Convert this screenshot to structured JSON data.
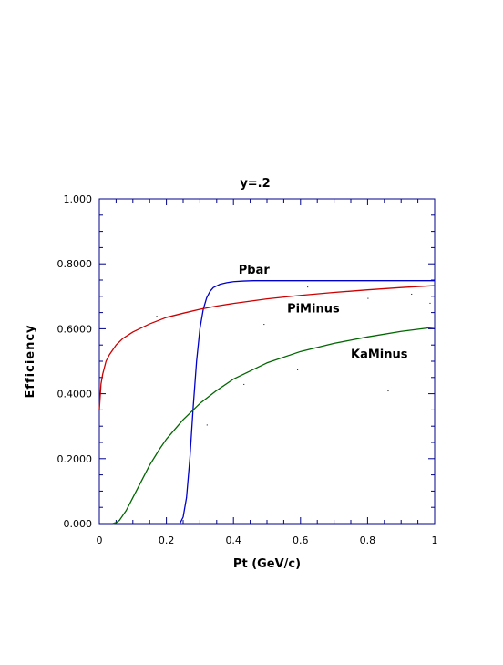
{
  "chart_data": {
    "type": "line",
    "title": "y=.2",
    "xlabel": "Pt (GeV/c)",
    "ylabel": "Efficiency",
    "xlim": [
      0,
      1
    ],
    "ylim": [
      0,
      1
    ],
    "xticks": [
      {
        "value": 0,
        "label": "0"
      },
      {
        "value": 0.2,
        "label": "0.2"
      },
      {
        "value": 0.4,
        "label": "0.4"
      },
      {
        "value": 0.6,
        "label": "0.6"
      },
      {
        "value": 0.8,
        "label": "0.8"
      },
      {
        "value": 1,
        "label": "1"
      }
    ],
    "yticks": [
      {
        "value": 0,
        "label": "0.000"
      },
      {
        "value": 0.2,
        "label": "0.2000"
      },
      {
        "value": 0.4,
        "label": "0.4000"
      },
      {
        "value": 0.6,
        "label": "0.6000"
      },
      {
        "value": 0.8,
        "label": "0.8000"
      },
      {
        "value": 1,
        "label": "1.000"
      }
    ],
    "grid": false,
    "series": [
      {
        "name": "Pbar",
        "color": "#0000cc",
        "x": [
          0.24,
          0.25,
          0.26,
          0.27,
          0.28,
          0.29,
          0.3,
          0.31,
          0.32,
          0.33,
          0.34,
          0.36,
          0.38,
          0.4,
          0.43,
          0.46,
          0.5,
          0.6,
          0.7,
          0.8,
          0.9,
          1.0
        ],
        "y": [
          0.0,
          0.02,
          0.08,
          0.2,
          0.36,
          0.5,
          0.6,
          0.66,
          0.695,
          0.715,
          0.727,
          0.737,
          0.742,
          0.745,
          0.747,
          0.748,
          0.748,
          0.748,
          0.748,
          0.748,
          0.748,
          0.748
        ]
      },
      {
        "name": "PiMinus",
        "color": "#cc0000",
        "x": [
          0.0,
          0.005,
          0.01,
          0.02,
          0.03,
          0.05,
          0.07,
          0.1,
          0.15,
          0.2,
          0.25,
          0.3,
          0.35,
          0.4,
          0.5,
          0.6,
          0.7,
          0.8,
          0.9,
          1.0
        ],
        "y": [
          0.35,
          0.43,
          0.46,
          0.5,
          0.52,
          0.55,
          0.57,
          0.59,
          0.615,
          0.635,
          0.648,
          0.66,
          0.67,
          0.678,
          0.692,
          0.703,
          0.712,
          0.72,
          0.727,
          0.733
        ]
      },
      {
        "name": "KaMinus",
        "color": "#006600",
        "x": [
          0.04,
          0.05,
          0.06,
          0.08,
          0.1,
          0.12,
          0.15,
          0.18,
          0.2,
          0.25,
          0.3,
          0.35,
          0.4,
          0.45,
          0.5,
          0.6,
          0.7,
          0.8,
          0.9,
          1.0
        ],
        "y": [
          0.0,
          0.003,
          0.01,
          0.04,
          0.08,
          0.12,
          0.18,
          0.23,
          0.26,
          0.32,
          0.37,
          0.41,
          0.445,
          0.47,
          0.495,
          0.53,
          0.555,
          0.575,
          0.592,
          0.605
        ]
      }
    ],
    "annotations": [
      {
        "text": "Pbar",
        "series": "Pbar",
        "x": 0.415,
        "y": 0.77
      },
      {
        "text": "PiMinus",
        "series": "PiMinus",
        "x": 0.56,
        "y": 0.65
      },
      {
        "text": "KaMinus",
        "series": "KaMinus",
        "x": 0.75,
        "y": 0.51
      }
    ],
    "stray_points": [
      [
        0.49,
        0.615
      ],
      [
        0.62,
        0.73
      ],
      [
        0.8,
        0.695
      ],
      [
        0.93,
        0.708
      ],
      [
        0.985,
        0.68
      ],
      [
        0.32,
        0.305
      ],
      [
        0.59,
        0.475
      ],
      [
        0.86,
        0.41
      ],
      [
        0.43,
        0.43
      ],
      [
        0.17,
        0.64
      ]
    ]
  }
}
